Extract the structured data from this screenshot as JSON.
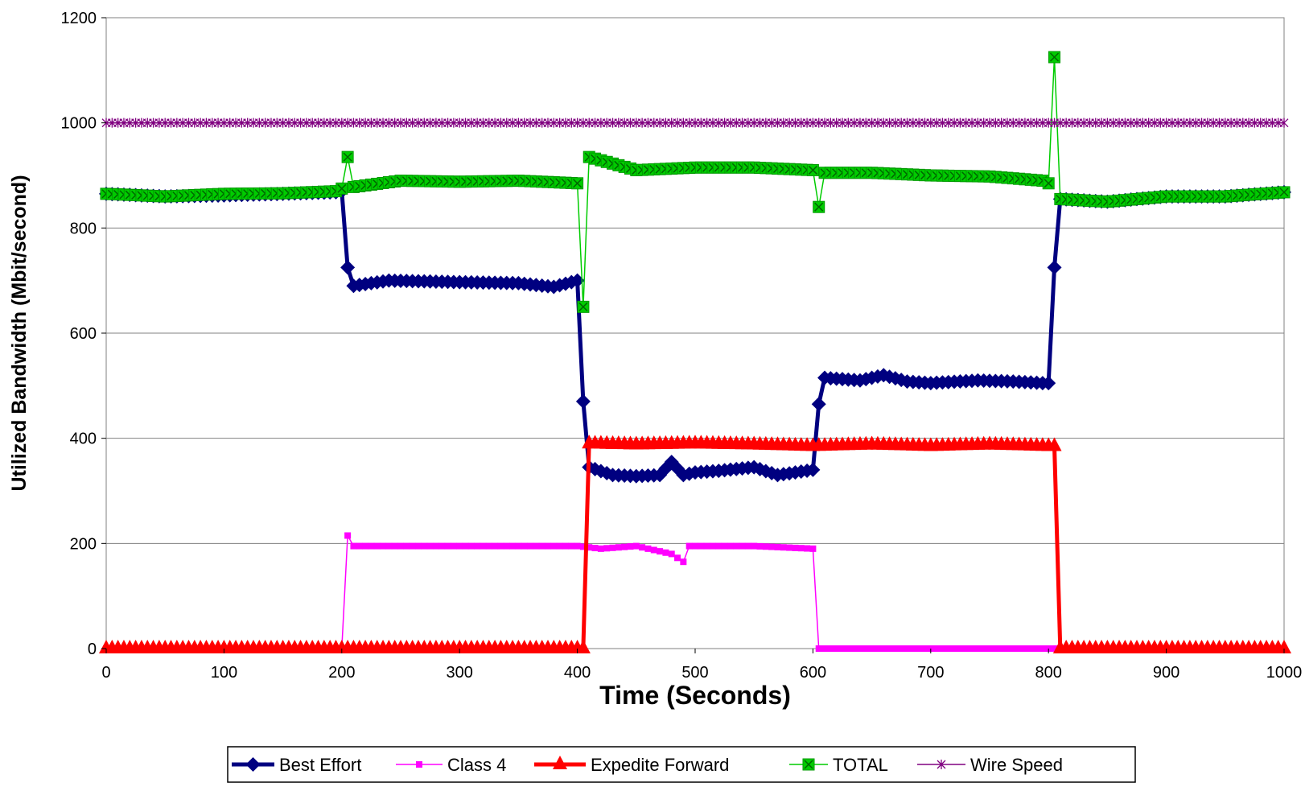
{
  "chart_data": {
    "type": "line",
    "title": "",
    "xlabel": "Time (Seconds)",
    "ylabel": "Utilized Bandwidth (Mbit/second)",
    "xlim": [
      0,
      1000
    ],
    "ylim": [
      0,
      1200
    ],
    "x_ticks": [
      "0",
      "100",
      "200",
      "300",
      "400",
      "500",
      "600",
      "700",
      "800",
      "900",
      "1000"
    ],
    "y_ticks": [
      "0",
      "200",
      "400",
      "600",
      "800",
      "1000",
      "1200"
    ],
    "grid": "horizontal",
    "legend_position": "bottom",
    "series": [
      {
        "name": "Best Effort",
        "color": "#000080",
        "marker": "diamond",
        "points": [
          [
            0,
            865
          ],
          [
            50,
            860
          ],
          [
            100,
            862
          ],
          [
            150,
            865
          ],
          [
            195,
            868
          ],
          [
            200,
            870
          ],
          [
            205,
            725
          ],
          [
            210,
            690
          ],
          [
            240,
            700
          ],
          [
            300,
            697
          ],
          [
            350,
            695
          ],
          [
            380,
            688
          ],
          [
            400,
            700
          ],
          [
            405,
            470
          ],
          [
            410,
            345
          ],
          [
            430,
            330
          ],
          [
            450,
            328
          ],
          [
            470,
            330
          ],
          [
            480,
            355
          ],
          [
            490,
            330
          ],
          [
            500,
            335
          ],
          [
            520,
            338
          ],
          [
            550,
            345
          ],
          [
            570,
            330
          ],
          [
            600,
            340
          ],
          [
            605,
            465
          ],
          [
            610,
            515
          ],
          [
            640,
            510
          ],
          [
            660,
            520
          ],
          [
            680,
            508
          ],
          [
            700,
            505
          ],
          [
            740,
            510
          ],
          [
            770,
            508
          ],
          [
            795,
            505
          ],
          [
            800,
            505
          ],
          [
            805,
            725
          ],
          [
            810,
            855
          ],
          [
            850,
            850
          ],
          [
            900,
            860
          ],
          [
            950,
            860
          ],
          [
            1000,
            868
          ]
        ]
      },
      {
        "name": "Class 4",
        "color": "#FF00FF",
        "marker": "square",
        "points": [
          [
            0,
            0
          ],
          [
            200,
            0
          ],
          [
            205,
            215
          ],
          [
            210,
            195
          ],
          [
            250,
            195
          ],
          [
            300,
            195
          ],
          [
            350,
            195
          ],
          [
            400,
            195
          ],
          [
            420,
            190
          ],
          [
            450,
            195
          ],
          [
            480,
            180
          ],
          [
            490,
            165
          ],
          [
            495,
            195
          ],
          [
            550,
            195
          ],
          [
            600,
            190
          ],
          [
            605,
            0
          ],
          [
            700,
            0
          ],
          [
            800,
            0
          ],
          [
            805,
            0
          ]
        ]
      },
      {
        "name": "Expedite Forward",
        "color": "#FF0000",
        "marker": "triangle",
        "points": [
          [
            0,
            0
          ],
          [
            100,
            0
          ],
          [
            200,
            0
          ],
          [
            300,
            0
          ],
          [
            400,
            0
          ],
          [
            405,
            0
          ],
          [
            410,
            390
          ],
          [
            450,
            388
          ],
          [
            500,
            390
          ],
          [
            550,
            388
          ],
          [
            600,
            385
          ],
          [
            650,
            388
          ],
          [
            700,
            385
          ],
          [
            750,
            388
          ],
          [
            800,
            385
          ],
          [
            805,
            385
          ],
          [
            810,
            0
          ],
          [
            900,
            0
          ],
          [
            1000,
            0
          ]
        ]
      },
      {
        "name": "TOTAL",
        "color": "#00CC00",
        "marker": "square-x",
        "points": [
          [
            0,
            865
          ],
          [
            50,
            860
          ],
          [
            100,
            865
          ],
          [
            150,
            866
          ],
          [
            195,
            870
          ],
          [
            200,
            875
          ],
          [
            205,
            935
          ],
          [
            210,
            878
          ],
          [
            250,
            890
          ],
          [
            300,
            888
          ],
          [
            350,
            890
          ],
          [
            400,
            885
          ],
          [
            405,
            650
          ],
          [
            410,
            935
          ],
          [
            450,
            910
          ],
          [
            500,
            915
          ],
          [
            550,
            915
          ],
          [
            600,
            910
          ],
          [
            605,
            840
          ],
          [
            610,
            905
          ],
          [
            650,
            905
          ],
          [
            700,
            900
          ],
          [
            750,
            898
          ],
          [
            795,
            890
          ],
          [
            800,
            885
          ],
          [
            805,
            1125
          ],
          [
            810,
            855
          ],
          [
            850,
            850
          ],
          [
            900,
            860
          ],
          [
            950,
            860
          ],
          [
            1000,
            868
          ]
        ]
      },
      {
        "name": "Wire Speed",
        "color": "#800080",
        "marker": "star",
        "points": [
          [
            0,
            1000
          ],
          [
            1000,
            1000
          ]
        ]
      }
    ]
  }
}
